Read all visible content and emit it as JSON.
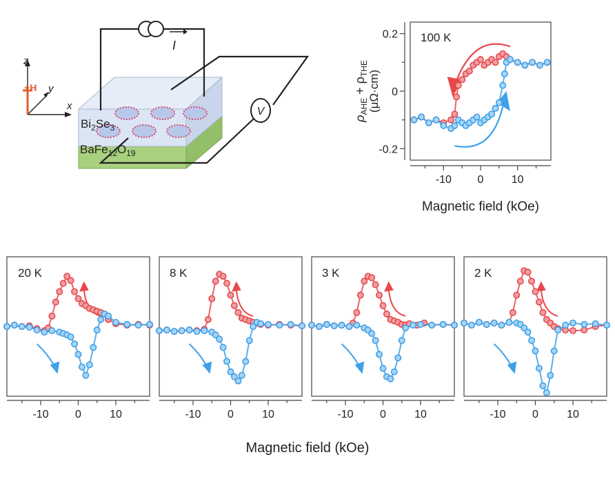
{
  "colors": {
    "red": "#e8484b",
    "blue": "#3da0e8",
    "ptRedFill": "#f0a0a4",
    "ptBlueFill": "#a8d4f6",
    "axis": "#444444",
    "substrate": "#a9d07e",
    "film": "#dbe5f4",
    "field": "#e05d2a"
  },
  "schematic": {
    "current_label": "I",
    "voltmeter_label": "V",
    "axis_z": "z",
    "axis_y": "y",
    "axis_x": "x",
    "field_label": "H",
    "film_label": [
      "Bi",
      "2",
      "Se",
      "3"
    ],
    "substrate_label": [
      "BaFe",
      "12",
      "O",
      "19"
    ]
  },
  "chart_data": [
    {
      "type": "scatter",
      "panel_label": "100 K",
      "xlabel": "Magnetic field (kOe)",
      "ylabel_parts": [
        "ρ",
        "AHE",
        " + ρ",
        "THE"
      ],
      "ylabel_unit": "(μΩ·cm)",
      "xlim": [
        -19,
        19
      ],
      "ylim": [
        -0.24,
        0.24
      ],
      "xticks": [
        -10,
        0,
        10
      ],
      "yticks": [
        -0.2,
        0,
        0.2
      ],
      "ytick_labels": [
        "-0.2",
        "0",
        "0.2"
      ],
      "series": [
        {
          "color": "red",
          "x": [
            -18,
            -16,
            -14,
            -12,
            -10,
            -8,
            -7,
            -6.5,
            -6,
            -5,
            -4,
            -3,
            -2,
            -1,
            0,
            1,
            2,
            3,
            4,
            5,
            6,
            7,
            8,
            10,
            12,
            14,
            16,
            18
          ],
          "y": [
            -0.1,
            -0.09,
            -0.11,
            -0.1,
            -0.11,
            -0.1,
            -0.08,
            -0.02,
            0.02,
            0.04,
            0.06,
            0.07,
            0.09,
            0.1,
            0.11,
            0.09,
            0.1,
            0.11,
            0.1,
            0.12,
            0.13,
            0.12,
            0.11,
            0.1,
            0.09,
            0.1,
            0.09,
            0.1
          ]
        },
        {
          "color": "blue",
          "x": [
            -18,
            -16,
            -14,
            -12,
            -10,
            -8,
            -7,
            -6,
            -5,
            -4,
            -3,
            -2,
            -1,
            0,
            1,
            2,
            3,
            4,
            5,
            6,
            6.5,
            7,
            8,
            10,
            12,
            14,
            16,
            18
          ],
          "y": [
            -0.1,
            -0.09,
            -0.11,
            -0.1,
            -0.12,
            -0.13,
            -0.12,
            -0.1,
            -0.11,
            -0.12,
            -0.11,
            -0.1,
            -0.09,
            -0.11,
            -0.1,
            -0.09,
            -0.08,
            -0.06,
            -0.04,
            0.02,
            0.06,
            0.1,
            0.11,
            0.1,
            0.09,
            0.1,
            0.09,
            0.1
          ]
        }
      ]
    },
    {
      "type": "scatter",
      "panel_label": "20 K",
      "xlim": [
        -19,
        19
      ],
      "ylim": [
        -1,
        1
      ],
      "xticks": [
        -10,
        0,
        10
      ],
      "xtick_labels": [
        "-10",
        "0",
        "10"
      ],
      "series": [
        {
          "color": "red",
          "x": [
            -19,
            -17,
            -15,
            -13,
            -11,
            -9,
            -8,
            -7,
            -6,
            -5,
            -4,
            -3,
            -2,
            -1,
            0,
            1,
            2,
            3,
            4,
            5,
            6,
            7,
            8,
            10,
            13,
            16,
            19
          ],
          "y": [
            0.0,
            0.02,
            0.0,
            0.01,
            -0.03,
            -0.06,
            -0.02,
            0.15,
            0.35,
            0.5,
            0.62,
            0.72,
            0.66,
            0.5,
            0.4,
            0.33,
            0.3,
            0.26,
            0.24,
            0.22,
            0.2,
            0.18,
            0.1,
            0.04,
            0.02,
            0.03,
            0.02
          ]
        },
        {
          "color": "blue",
          "x": [
            -19,
            -17,
            -15,
            -13,
            -11,
            -9,
            -7,
            -5,
            -4,
            -3,
            -2,
            -1,
            0,
            1,
            2,
            3,
            4,
            5,
            6,
            7,
            8,
            10,
            13,
            16,
            19
          ],
          "y": [
            0.0,
            0.02,
            0.0,
            -0.01,
            -0.05,
            -0.08,
            -0.06,
            -0.08,
            -0.1,
            -0.12,
            -0.15,
            -0.25,
            -0.4,
            -0.58,
            -0.7,
            -0.55,
            -0.3,
            -0.05,
            0.1,
            0.18,
            0.15,
            0.06,
            0.03,
            0.02,
            0.03
          ]
        }
      ]
    },
    {
      "type": "scatter",
      "panel_label": "8 K",
      "xlim": [
        -19,
        19
      ],
      "ylim": [
        -1,
        1
      ],
      "xticks": [
        -10,
        0,
        10
      ],
      "xtick_labels": [
        "-10",
        "0",
        "10"
      ],
      "series": [
        {
          "color": "red",
          "x": [
            -19,
            -17,
            -15,
            -13,
            -11,
            -9,
            -7,
            -6,
            -5,
            -4,
            -3,
            -2,
            -1,
            0,
            1,
            2,
            3,
            4,
            5,
            6,
            7,
            8,
            10,
            13,
            16,
            19
          ],
          "y": [
            -0.06,
            -0.05,
            -0.07,
            -0.06,
            -0.05,
            -0.06,
            -0.04,
            0.1,
            0.4,
            0.65,
            0.75,
            0.72,
            0.62,
            0.45,
            0.3,
            0.2,
            0.12,
            0.1,
            0.08,
            0.06,
            0.05,
            0.03,
            0.02,
            0.03,
            0.02,
            0.01
          ]
        },
        {
          "color": "blue",
          "x": [
            -19,
            -17,
            -15,
            -13,
            -11,
            -9,
            -7,
            -5,
            -4,
            -3,
            -2,
            -1,
            0,
            1,
            2,
            3,
            4,
            5,
            6,
            7,
            8,
            10,
            13,
            16,
            19
          ],
          "y": [
            -0.06,
            -0.05,
            -0.07,
            -0.06,
            -0.05,
            -0.07,
            -0.06,
            -0.08,
            -0.12,
            -0.18,
            -0.3,
            -0.5,
            -0.65,
            -0.72,
            -0.78,
            -0.7,
            -0.5,
            -0.2,
            0.0,
            0.06,
            0.04,
            0.03,
            0.02,
            0.03,
            0.01
          ]
        }
      ]
    },
    {
      "type": "scatter",
      "panel_label": "3 K",
      "xlim": [
        -19,
        19
      ],
      "ylim": [
        -1,
        1
      ],
      "xticks": [
        -10,
        0,
        10
      ],
      "xtick_labels": [
        "-10",
        "0",
        "10"
      ],
      "series": [
        {
          "color": "red",
          "x": [
            -19,
            -17,
            -15,
            -13,
            -11,
            -9,
            -8,
            -7,
            -6,
            -5,
            -4,
            -3,
            -2,
            -1,
            0,
            1,
            2,
            3,
            4,
            5,
            6,
            7,
            9,
            11,
            13,
            16,
            19
          ],
          "y": [
            0.02,
            0.0,
            0.03,
            0.01,
            0.02,
            0.0,
            0.05,
            0.2,
            0.45,
            0.65,
            0.72,
            0.7,
            0.6,
            0.45,
            0.3,
            0.18,
            0.1,
            0.08,
            0.06,
            0.03,
            0.02,
            0.04,
            0.02,
            0.05,
            0.02,
            0.03,
            0.02
          ]
        },
        {
          "color": "blue",
          "x": [
            -19,
            -17,
            -15,
            -13,
            -11,
            -9,
            -7,
            -5,
            -4,
            -3,
            -2,
            -1,
            0,
            1,
            2,
            3,
            4,
            5,
            6,
            8,
            10,
            13,
            16,
            19
          ],
          "y": [
            0.02,
            0.0,
            0.03,
            0.01,
            0.02,
            0.0,
            0.02,
            -0.02,
            -0.05,
            -0.1,
            -0.2,
            -0.4,
            -0.6,
            -0.72,
            -0.75,
            -0.65,
            -0.45,
            -0.2,
            -0.02,
            0.02,
            0.03,
            0.02,
            0.03,
            0.02
          ]
        }
      ]
    },
    {
      "type": "scatter",
      "panel_label": "2 K",
      "xlim": [
        -19,
        19
      ],
      "ylim": [
        -1,
        1
      ],
      "xticks": [
        -10,
        0,
        10
      ],
      "xtick_labels": [
        "-10",
        "0",
        "10"
      ],
      "series": [
        {
          "color": "red",
          "x": [
            -19,
            -17,
            -15,
            -13,
            -11,
            -9,
            -7,
            -6,
            -5,
            -4,
            -3,
            -2,
            -1,
            0,
            1,
            2,
            3,
            4,
            5,
            6,
            8,
            10,
            13,
            16,
            19
          ],
          "y": [
            0.05,
            0.02,
            0.06,
            0.03,
            0.05,
            0.02,
            0.06,
            0.2,
            0.45,
            0.65,
            0.8,
            0.78,
            0.65,
            0.5,
            0.35,
            0.2,
            0.1,
            0.05,
            0.0,
            -0.03,
            -0.05,
            -0.06,
            -0.05,
            0.0,
            0.02
          ]
        },
        {
          "color": "blue",
          "x": [
            -19,
            -17,
            -15,
            -13,
            -11,
            -9,
            -7,
            -5,
            -4,
            -3,
            -2,
            -1,
            0,
            1,
            2,
            3,
            4,
            5,
            6,
            8,
            10,
            13,
            16,
            19
          ],
          "y": [
            0.05,
            0.02,
            0.06,
            0.03,
            0.05,
            0.02,
            0.06,
            0.05,
            0.03,
            -0.02,
            -0.08,
            -0.2,
            -0.35,
            -0.6,
            -0.85,
            -0.95,
            -0.7,
            -0.35,
            -0.05,
            0.02,
            0.05,
            0.03,
            0.04,
            0.02
          ]
        }
      ]
    }
  ],
  "shared_xlabel": "Magnetic field (kOe)"
}
